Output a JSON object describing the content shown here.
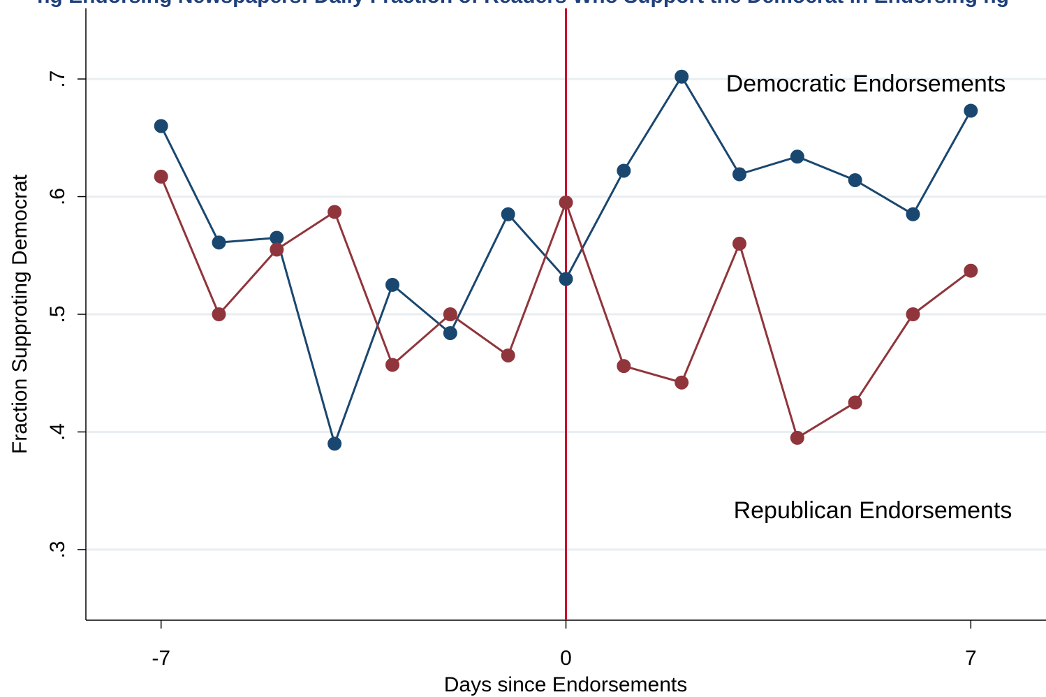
{
  "chart_data": {
    "type": "line",
    "title": "",
    "xlabel": "Days since Endorsements",
    "ylabel": "Fraction Supproting Democrat",
    "xlim": [
      -8.3,
      8.3
    ],
    "ylim": [
      0.24,
      0.76
    ],
    "x_ticks": [
      -7,
      0,
      7
    ],
    "x_tick_labels": [
      "-7",
      "0",
      "7"
    ],
    "y_ticks": [
      0.3,
      0.4,
      0.5,
      0.6,
      0.7
    ],
    "y_tick_labels": [
      ".3",
      ".4",
      ".5",
      ".6",
      ".7"
    ],
    "grid": true,
    "reference_line": {
      "x": 0,
      "color": "#c8102e"
    },
    "x": [
      -7,
      -6,
      -5,
      -4,
      -3,
      -2,
      -1,
      0,
      1,
      2,
      3,
      4,
      5,
      6,
      7
    ],
    "series": [
      {
        "color": "#1a476f",
        "values": [
          0.66,
          0.561,
          0.565,
          0.39,
          0.525,
          0.484,
          0.585,
          0.53,
          0.622,
          0.702,
          0.619,
          0.634,
          0.614,
          0.585,
          0.673
        ]
      },
      {
        "color": "#90353b",
        "values": [
          0.617,
          0.5,
          0.555,
          0.587,
          0.457,
          0.5,
          0.465,
          0.595,
          0.456,
          0.442,
          0.56,
          0.395,
          0.425,
          0.5,
          0.537
        ]
      }
    ],
    "annotations": [
      {
        "text": "Democratic Endorsements",
        "x": 2.4,
        "y": 0.7
      },
      {
        "text": "Republican Endorsements",
        "x": 2.5,
        "y": 0.3
      }
    ],
    "clipped_title_text": "ng Endorsing Newspapers: Daily Fraction of Readers Who Support the Democrat in Endorsing ng"
  }
}
